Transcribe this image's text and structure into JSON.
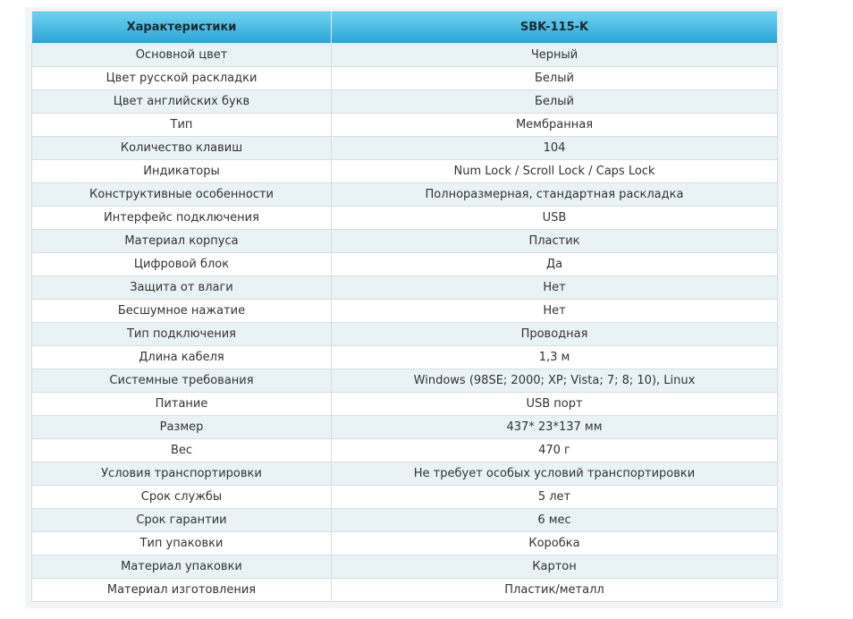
{
  "table": {
    "header": [
      "Характеристики",
      "SBK-115-K"
    ],
    "rows": [
      [
        "Основной цвет",
        "Черный"
      ],
      [
        "Цвет русской раскладки",
        "Белый"
      ],
      [
        "Цвет английских букв",
        "Белый"
      ],
      [
        "Тип",
        "Мембранная"
      ],
      [
        "Количество клавиш",
        "104"
      ],
      [
        "Индикаторы",
        "Num Lock / Scroll Lock / Caps Lock"
      ],
      [
        "Конструктивные особенности",
        "Полноразмерная, стандартная раскладка"
      ],
      [
        "Интерфейс подключения",
        "USB"
      ],
      [
        "Материал корпуса",
        "Пластик"
      ],
      [
        "Цифровой блок",
        "Да"
      ],
      [
        "Защита от влаги",
        "Нет"
      ],
      [
        "Бесшумное нажатие",
        "Нет"
      ],
      [
        "Тип подключения",
        "Проводная"
      ],
      [
        "Длина кабеля",
        "1,3 м"
      ],
      [
        "Системные требования",
        "Windows (98SE; 2000; XP; Vista;  7; 8; 10), Linux"
      ],
      [
        "Питание",
        "USB порт"
      ],
      [
        "Размер",
        "437* 23*137 мм"
      ],
      [
        "Вес",
        "470 г"
      ],
      [
        "Условия транспортировки",
        "Не требует особых условий транспортировки"
      ],
      [
        "Срок службы",
        "5 лет"
      ],
      [
        "Срок гарантии",
        "6 мес"
      ],
      [
        "Тип упаковки",
        "Коробка"
      ],
      [
        "Материал упаковки",
        "Картон"
      ],
      [
        "Материал изготовления",
        "Пластик/металл"
      ]
    ]
  }
}
